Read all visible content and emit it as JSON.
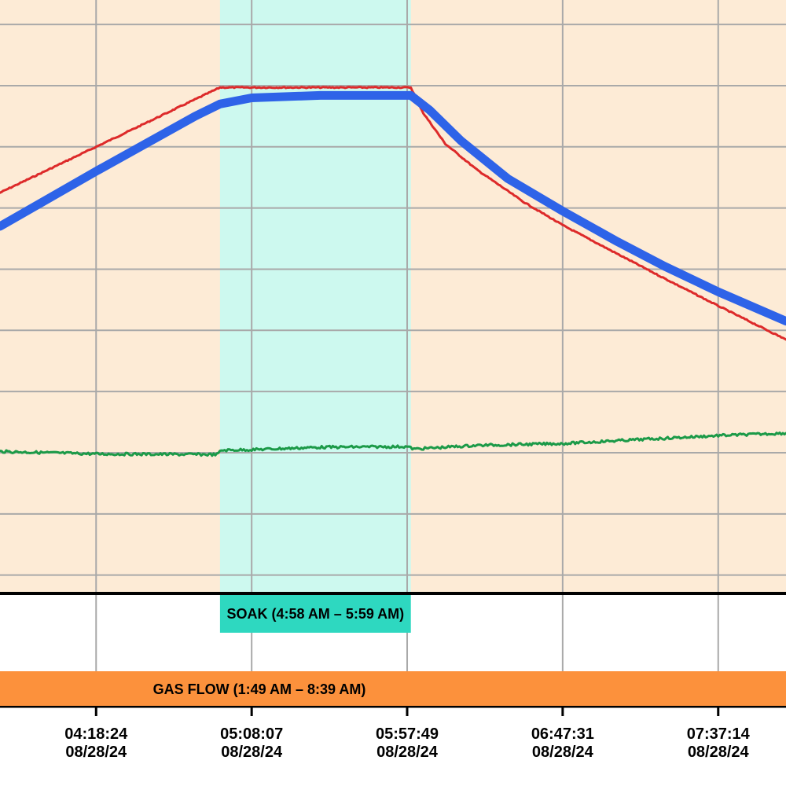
{
  "chart_data": {
    "type": "line",
    "title": "",
    "xlabel": "",
    "ylabel": "",
    "x_axis": {
      "type": "time",
      "view_range": [
        "03:47:41",
        "07:58:54"
      ],
      "tick_labels": [
        {
          "time": "04:18:24",
          "date": "08/28/24"
        },
        {
          "time": "05:08:07",
          "date": "08/28/24"
        },
        {
          "time": "05:57:49",
          "date": "08/28/24"
        },
        {
          "time": "06:47:31",
          "date": "08/28/24"
        },
        {
          "time": "07:37:14",
          "date": "08/28/24"
        }
      ]
    },
    "grid": true,
    "y_tick_labels_visible": false,
    "plot_background": "#fdebd6",
    "series": [
      {
        "color": "#dd2a2a",
        "style": "thin noisy",
        "points": [
          [
            "03:47:41",
            62.5
          ],
          [
            "04:18:24",
            70.0
          ],
          [
            "04:58:00",
            79.7
          ],
          [
            "05:08:07",
            79.7
          ],
          [
            "05:30:00",
            79.7
          ],
          [
            "05:59:00",
            79.7
          ],
          [
            "06:03:00",
            75.5
          ],
          [
            "06:10:00",
            70.5
          ],
          [
            "06:20:00",
            66.3
          ],
          [
            "06:35:00",
            61.0
          ],
          [
            "06:47:31",
            57.2
          ],
          [
            "07:05:00",
            52.5
          ],
          [
            "07:20:00",
            48.5
          ],
          [
            "07:37:14",
            44.0
          ],
          [
            "07:58:54",
            38.5
          ]
        ]
      },
      {
        "color": "#2e63e8",
        "style": "thick",
        "points": [
          [
            "03:47:41",
            57.0
          ],
          [
            "04:18:24",
            66.0
          ],
          [
            "04:50:00",
            75.0
          ],
          [
            "04:58:00",
            77.0
          ],
          [
            "05:08:07",
            78.0
          ],
          [
            "05:30:00",
            78.4
          ],
          [
            "05:59:00",
            78.4
          ],
          [
            "06:05:00",
            76.0
          ],
          [
            "06:15:00",
            71.0
          ],
          [
            "06:30:00",
            64.8
          ],
          [
            "06:47:31",
            59.5
          ],
          [
            "07:05:00",
            54.5
          ],
          [
            "07:20:00",
            50.5
          ],
          [
            "07:37:14",
            46.3
          ],
          [
            "07:58:54",
            41.5
          ]
        ]
      },
      {
        "color": "#1c9a48",
        "style": "thin noisy",
        "points": [
          [
            "03:47:41",
            20.2
          ],
          [
            "04:18:24",
            19.8
          ],
          [
            "04:57:00",
            19.7
          ],
          [
            "04:58:30",
            20.4
          ],
          [
            "05:08:07",
            20.5
          ],
          [
            "05:30:00",
            20.9
          ],
          [
            "05:57:49",
            21.0
          ],
          [
            "06:00:00",
            20.6
          ],
          [
            "06:20:00",
            21.2
          ],
          [
            "06:47:31",
            21.5
          ],
          [
            "07:10:00",
            22.1
          ],
          [
            "07:37:14",
            22.8
          ],
          [
            "07:58:54",
            23.2
          ]
        ]
      }
    ],
    "ylim": [
      -3,
      94
    ],
    "bands": [
      {
        "label": "SOAK (4:58 AM – 5:59 AM)",
        "start": "04:58:00",
        "end": "05:59:00",
        "color": "#2ed8c0",
        "shade": "#cdf9ef"
      },
      {
        "label": "GAS FLOW (1:49 AM – 8:39 AM)",
        "start": "01:49:00",
        "end": "08:39:00",
        "color": "#fc913c"
      }
    ]
  }
}
